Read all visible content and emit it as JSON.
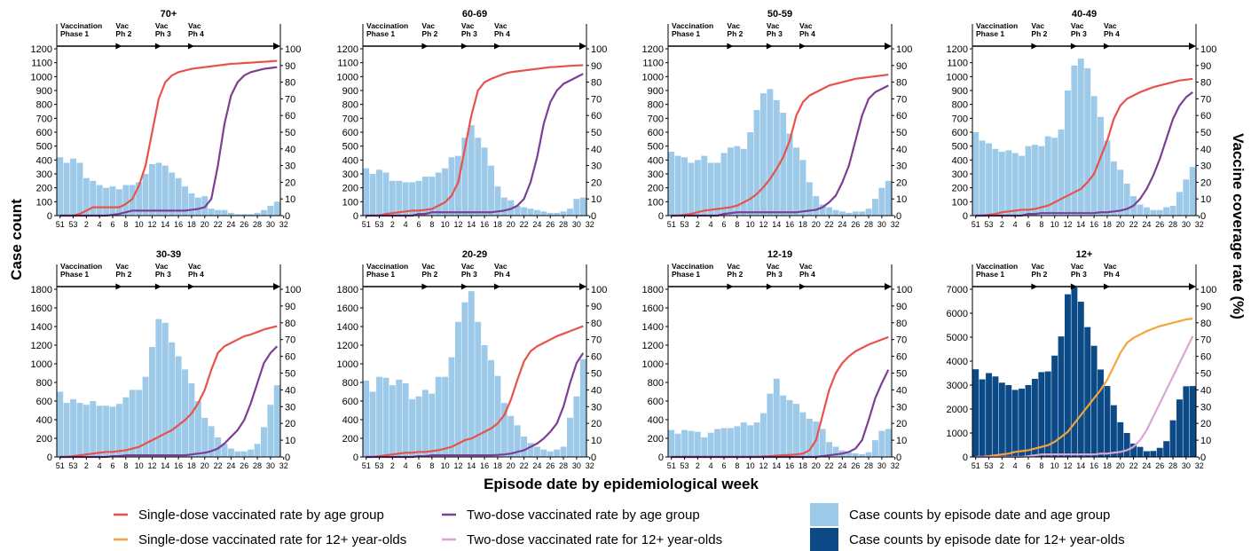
{
  "figure": {
    "y_left_label": "Case count",
    "y_right_label": "Vaccine coverage rate (%)",
    "x_label": "Episode date by epidemiological week"
  },
  "phases": [
    {
      "line1": "Vaccination",
      "line2": "Phase 1",
      "week_index": 0
    },
    {
      "line1": "Vac",
      "line2": "Ph 2",
      "week_index": 9
    },
    {
      "line1": "Vac",
      "line2": "Ph 3",
      "week_index": 15
    },
    {
      "line1": "Vac",
      "line2": "Ph 4",
      "week_index": 20
    }
  ],
  "legend": [
    {
      "label": "Single-dose vaccinated rate by age group",
      "kind": "line",
      "color": "#e8524a"
    },
    {
      "label": "Two-dose vaccinated rate by age group",
      "kind": "line",
      "color": "#7b3f94"
    },
    {
      "label": "Case counts by episode date and age group",
      "kind": "box",
      "color": "#9ecae9"
    },
    {
      "label": "Single-dose vaccinated rate for 12+ year-olds",
      "kind": "line",
      "color": "#f4a43a"
    },
    {
      "label": "Two-dose vaccinated rate for 12+ year-olds",
      "kind": "line",
      "color": "#d9a6d6"
    },
    {
      "label": "Case counts by episode date for 12+ year-olds",
      "kind": "box",
      "color": "#0b4a86"
    }
  ],
  "chart_data": [
    {
      "type": "bar",
      "title": "70+",
      "x_ticks": [
        "51",
        "53",
        "2",
        "4",
        "6",
        "8",
        "10",
        "12",
        "14",
        "16",
        "18",
        "20",
        "22",
        "24",
        "26",
        "28",
        "30",
        "32"
      ],
      "ylim": [
        0,
        1200
      ],
      "y_ticks": [
        0,
        100,
        200,
        300,
        400,
        500,
        600,
        700,
        800,
        900,
        1000,
        1100,
        1200
      ],
      "y2lim": [
        0,
        100
      ],
      "y2_ticks": [
        0,
        10,
        20,
        30,
        40,
        50,
        60,
        70,
        80,
        90,
        100
      ],
      "bar_color": "#9ecae9",
      "cases": [
        420,
        380,
        410,
        380,
        270,
        250,
        220,
        200,
        210,
        190,
        220,
        220,
        240,
        300,
        370,
        380,
        360,
        310,
        270,
        210,
        160,
        130,
        140,
        50,
        40,
        40,
        20,
        10,
        10,
        10,
        20,
        40,
        70,
        100
      ],
      "dose1_color": "#e8524a",
      "dose2_color": "#7b3f94",
      "dose1": [
        0,
        0,
        0,
        1,
        3,
        5,
        5,
        5,
        5,
        5,
        7,
        10,
        18,
        30,
        50,
        70,
        80,
        84,
        86,
        87,
        88,
        88.5,
        89,
        89.5,
        90,
        90.5,
        91,
        91.2,
        91.5,
        91.7,
        92,
        92.2,
        92.5,
        92.8
      ],
      "dose2": [
        0,
        0,
        0,
        0,
        0,
        0,
        0,
        0,
        0.5,
        1,
        2,
        3,
        3,
        3,
        3,
        3,
        3,
        3,
        3,
        3,
        3.5,
        4,
        5,
        10,
        30,
        55,
        72,
        80,
        84,
        86,
        87,
        88,
        88.5,
        89
      ]
    },
    {
      "type": "bar",
      "title": "60-69",
      "x_ticks": [
        "51",
        "53",
        "2",
        "4",
        "6",
        "8",
        "10",
        "12",
        "14",
        "16",
        "18",
        "20",
        "22",
        "24",
        "26",
        "28",
        "30",
        "32"
      ],
      "ylim": [
        0,
        1200
      ],
      "y_ticks": [
        0,
        100,
        200,
        300,
        400,
        500,
        600,
        700,
        800,
        900,
        1000,
        1100,
        1200
      ],
      "y2lim": [
        0,
        100
      ],
      "y2_ticks": [
        0,
        10,
        20,
        30,
        40,
        50,
        60,
        70,
        80,
        90,
        100
      ],
      "bar_color": "#9ecae9",
      "cases": [
        340,
        300,
        330,
        310,
        250,
        250,
        240,
        240,
        250,
        280,
        280,
        310,
        340,
        420,
        430,
        560,
        650,
        560,
        490,
        360,
        210,
        130,
        110,
        70,
        60,
        50,
        40,
        30,
        20,
        20,
        30,
        50,
        120,
        130
      ],
      "dose1_color": "#e8524a",
      "dose2_color": "#7b3f94",
      "dose1": [
        0,
        0,
        0,
        1,
        1.5,
        2,
        2.5,
        3,
        3,
        3.5,
        4,
        6,
        8,
        12,
        20,
        40,
        60,
        75,
        80,
        82,
        83.5,
        85,
        86,
        86.5,
        87,
        87.5,
        88,
        88.5,
        89,
        89.2,
        89.5,
        89.8,
        90,
        90.2
      ],
      "dose2": [
        0,
        0,
        0,
        0,
        0,
        0,
        0,
        0,
        1,
        1,
        2,
        2,
        2,
        2,
        2,
        2,
        2,
        2,
        2,
        2,
        2.5,
        3,
        4,
        6,
        10,
        20,
        35,
        55,
        68,
        75,
        79,
        81,
        83,
        85
      ]
    },
    {
      "type": "bar",
      "title": "50-59",
      "x_ticks": [
        "51",
        "53",
        "2",
        "4",
        "6",
        "8",
        "10",
        "12",
        "14",
        "16",
        "18",
        "20",
        "22",
        "24",
        "26",
        "28",
        "30",
        "32"
      ],
      "ylim": [
        0,
        1200
      ],
      "y_ticks": [
        0,
        100,
        200,
        300,
        400,
        500,
        600,
        700,
        800,
        900,
        1000,
        1100,
        1200
      ],
      "y2lim": [
        0,
        100
      ],
      "y2_ticks": [
        0,
        10,
        20,
        30,
        40,
        50,
        60,
        70,
        80,
        90,
        100
      ],
      "bar_color": "#9ecae9",
      "cases": [
        460,
        430,
        420,
        380,
        400,
        430,
        380,
        380,
        450,
        490,
        500,
        480,
        600,
        760,
        880,
        910,
        830,
        740,
        590,
        490,
        400,
        240,
        140,
        80,
        60,
        40,
        30,
        20,
        30,
        30,
        50,
        120,
        200,
        250
      ],
      "dose1_color": "#e8524a",
      "dose2_color": "#7b3f94",
      "dose1": [
        0,
        0,
        0.5,
        1,
        2,
        3,
        3.5,
        4,
        4.5,
        5,
        6,
        8,
        10,
        13,
        17,
        22,
        28,
        35,
        45,
        60,
        68,
        72,
        74,
        76,
        78,
        79,
        80,
        81,
        82,
        82.5,
        83,
        83.5,
        84,
        84.5
      ],
      "dose2": [
        0,
        0,
        0,
        0,
        0,
        0,
        0,
        0,
        1,
        1.5,
        2,
        2,
        2,
        2,
        2,
        2,
        2,
        2,
        2,
        2,
        2.5,
        3,
        3.5,
        5,
        8,
        12,
        20,
        30,
        45,
        60,
        70,
        74,
        76,
        78
      ]
    },
    {
      "type": "bar",
      "title": "40-49",
      "x_ticks": [
        "51",
        "53",
        "2",
        "4",
        "6",
        "8",
        "10",
        "12",
        "14",
        "16",
        "18",
        "20",
        "22",
        "24",
        "26",
        "28",
        "30",
        "32"
      ],
      "ylim": [
        0,
        1200
      ],
      "y_ticks": [
        0,
        100,
        200,
        300,
        400,
        500,
        600,
        700,
        800,
        900,
        1000,
        1100,
        1200
      ],
      "y2lim": [
        0,
        100
      ],
      "y2_ticks": [
        0,
        10,
        20,
        30,
        40,
        50,
        60,
        70,
        80,
        90,
        100
      ],
      "bar_color": "#9ecae9",
      "cases": [
        600,
        540,
        520,
        480,
        460,
        470,
        450,
        430,
        500,
        510,
        500,
        570,
        560,
        620,
        900,
        1080,
        1130,
        1060,
        860,
        710,
        540,
        390,
        330,
        230,
        140,
        80,
        60,
        40,
        40,
        60,
        70,
        170,
        260,
        350
      ],
      "dose1_color": "#e8524a",
      "dose2_color": "#7b3f94",
      "dose1": [
        0,
        0,
        0.5,
        1,
        2,
        2.5,
        3,
        3.5,
        3.5,
        4,
        5,
        6,
        8,
        10,
        12,
        14,
        16,
        20,
        25,
        35,
        45,
        58,
        66,
        70,
        72,
        74,
        75.5,
        77,
        78,
        79,
        80,
        81,
        81.5,
        82
      ],
      "dose2": [
        0,
        0,
        0,
        0,
        0,
        0,
        0,
        0,
        1,
        1,
        1.5,
        1.5,
        1.5,
        1.5,
        1.5,
        1.5,
        1.5,
        1.5,
        1.5,
        2,
        2,
        2.5,
        3,
        4,
        6,
        10,
        16,
        24,
        34,
        46,
        58,
        66,
        71,
        74
      ]
    },
    {
      "type": "bar",
      "title": "30-39",
      "x_ticks": [
        "51",
        "53",
        "2",
        "4",
        "6",
        "8",
        "10",
        "12",
        "14",
        "16",
        "18",
        "20",
        "22",
        "24",
        "26",
        "28",
        "30",
        "32"
      ],
      "ylim": [
        0,
        1800
      ],
      "y_ticks": [
        0,
        200,
        400,
        600,
        800,
        1000,
        1200,
        1400,
        1600,
        1800
      ],
      "y2lim": [
        0,
        100
      ],
      "y2_ticks": [
        0,
        10,
        20,
        30,
        40,
        50,
        60,
        70,
        80,
        90,
        100
      ],
      "bar_color": "#9ecae9",
      "cases": [
        700,
        580,
        620,
        580,
        560,
        600,
        550,
        550,
        540,
        570,
        640,
        720,
        720,
        860,
        1180,
        1480,
        1440,
        1230,
        1080,
        940,
        790,
        600,
        420,
        330,
        210,
        140,
        90,
        60,
        60,
        80,
        140,
        320,
        560,
        770
      ],
      "dose1_color": "#e8524a",
      "dose2_color": "#7b3f94",
      "dose1": [
        0,
        0,
        0.5,
        1,
        1.5,
        2,
        2.5,
        3,
        3,
        3.5,
        4,
        5,
        6,
        8,
        10,
        12,
        14,
        16,
        19,
        22,
        26,
        32,
        40,
        52,
        62,
        66,
        68,
        70,
        72,
        73,
        74.5,
        76,
        77,
        78
      ],
      "dose2": [
        0,
        0,
        0,
        0,
        0,
        0,
        0,
        0,
        0.5,
        0.5,
        1,
        1,
        1,
        1,
        1,
        1,
        1,
        1,
        1,
        1,
        1.5,
        2,
        2.5,
        3.5,
        5,
        8,
        12,
        16,
        22,
        32,
        44,
        56,
        62,
        66
      ]
    },
    {
      "type": "bar",
      "title": "20-29",
      "x_ticks": [
        "51",
        "53",
        "2",
        "4",
        "6",
        "8",
        "10",
        "12",
        "14",
        "16",
        "18",
        "20",
        "22",
        "24",
        "26",
        "28",
        "30",
        "32"
      ],
      "ylim": [
        0,
        1800
      ],
      "y_ticks": [
        0,
        200,
        400,
        600,
        800,
        1000,
        1200,
        1400,
        1600,
        1800
      ],
      "y2lim": [
        0,
        100
      ],
      "y2_ticks": [
        0,
        10,
        20,
        30,
        40,
        50,
        60,
        70,
        80,
        90,
        100
      ],
      "bar_color": "#9ecae9",
      "cases": [
        820,
        700,
        860,
        850,
        770,
        830,
        790,
        620,
        650,
        720,
        680,
        860,
        860,
        1070,
        1450,
        1660,
        1780,
        1450,
        1200,
        1040,
        870,
        580,
        440,
        340,
        220,
        150,
        110,
        80,
        60,
        80,
        110,
        420,
        650,
        1050
      ],
      "dose1_color": "#e8524a",
      "dose2_color": "#7b3f94",
      "dose1": [
        0,
        0,
        0.5,
        1,
        1.5,
        2,
        2.5,
        2.5,
        3,
        3,
        3.5,
        4,
        5,
        6,
        8,
        10,
        11,
        13,
        15,
        17,
        20,
        25,
        34,
        46,
        57,
        63,
        66,
        68,
        70,
        72,
        73.5,
        75,
        76.5,
        78
      ],
      "dose2": [
        0,
        0,
        0,
        0,
        0,
        0,
        0,
        0,
        0.5,
        0.5,
        1,
        1,
        1,
        1,
        1,
        1,
        1,
        1,
        1,
        1,
        1.2,
        1.5,
        2,
        3,
        4,
        6,
        8,
        11,
        15,
        20,
        30,
        44,
        56,
        62
      ]
    },
    {
      "type": "bar",
      "title": "12-19",
      "x_ticks": [
        "51",
        "53",
        "2",
        "4",
        "6",
        "8",
        "10",
        "12",
        "14",
        "16",
        "18",
        "20",
        "22",
        "24",
        "26",
        "28",
        "30",
        "32"
      ],
      "ylim": [
        0,
        1800
      ],
      "y_ticks": [
        0,
        200,
        400,
        600,
        800,
        1000,
        1200,
        1400,
        1600,
        1800
      ],
      "y2lim": [
        0,
        100
      ],
      "y2_ticks": [
        0,
        10,
        20,
        30,
        40,
        50,
        60,
        70,
        80,
        90,
        100
      ],
      "bar_color": "#9ecae9",
      "cases": [
        290,
        250,
        290,
        280,
        270,
        210,
        260,
        300,
        310,
        310,
        330,
        370,
        340,
        370,
        470,
        680,
        840,
        660,
        610,
        570,
        480,
        410,
        380,
        300,
        160,
        110,
        70,
        50,
        40,
        30,
        50,
        180,
        280,
        300
      ],
      "dose1_color": "#e8524a",
      "dose2_color": "#7b3f94",
      "dose1": [
        0,
        0,
        0,
        0,
        0,
        0,
        0,
        0,
        0,
        0,
        0,
        0,
        0,
        0,
        0.3,
        0.5,
        0.8,
        1,
        1.2,
        1.5,
        2,
        4,
        10,
        25,
        40,
        50,
        56,
        60,
        63,
        65,
        67,
        68.5,
        70,
        71.5
      ],
      "dose2": [
        0,
        0,
        0,
        0,
        0,
        0,
        0,
        0,
        0,
        0,
        0,
        0,
        0,
        0,
        0,
        0,
        0,
        0,
        0,
        0,
        0,
        0,
        0,
        0.5,
        1,
        1.5,
        2,
        3,
        5,
        10,
        22,
        35,
        44,
        52
      ]
    },
    {
      "type": "bar",
      "title": "12+",
      "x_ticks": [
        "51",
        "53",
        "2",
        "4",
        "6",
        "8",
        "10",
        "12",
        "14",
        "16",
        "18",
        "20",
        "22",
        "24",
        "26",
        "28",
        "30",
        "32"
      ],
      "ylim": [
        0,
        7000
      ],
      "y_ticks": [
        0,
        1000,
        2000,
        3000,
        4000,
        5000,
        6000,
        7000
      ],
      "y2lim": [
        0,
        100
      ],
      "y2_ticks": [
        0,
        10,
        20,
        30,
        40,
        50,
        60,
        70,
        80,
        90,
        100
      ],
      "bar_color": "#0b4a86",
      "cases": [
        3660,
        3240,
        3500,
        3360,
        3100,
        3000,
        2800,
        2850,
        3000,
        3260,
        3540,
        3570,
        4230,
        5030,
        6790,
        7080,
        6480,
        5420,
        4640,
        3650,
        2960,
        2160,
        1450,
        1000,
        560,
        420,
        240,
        250,
        380,
        660,
        1530,
        2400,
        2950,
        2960
      ],
      "dose1_color": "#f4a43a",
      "dose2_color": "#d9a6d6",
      "dose1": [
        0,
        0,
        0.5,
        1,
        1.5,
        2,
        3,
        3.5,
        4,
        5,
        6,
        7,
        9,
        12,
        15,
        20,
        25,
        30,
        35,
        40,
        46,
        54,
        62,
        68,
        71,
        73,
        75,
        76.5,
        78,
        79,
        80,
        81,
        82,
        82.5
      ],
      "dose2": [
        0,
        0,
        0,
        0,
        0,
        0,
        0,
        0,
        0.5,
        1,
        1.5,
        1.5,
        1.5,
        1.5,
        1.5,
        1.5,
        1.5,
        1.5,
        1.5,
        2,
        2,
        2.5,
        3,
        4,
        6,
        10,
        16,
        24,
        32,
        40,
        48,
        56,
        64,
        72
      ]
    }
  ]
}
